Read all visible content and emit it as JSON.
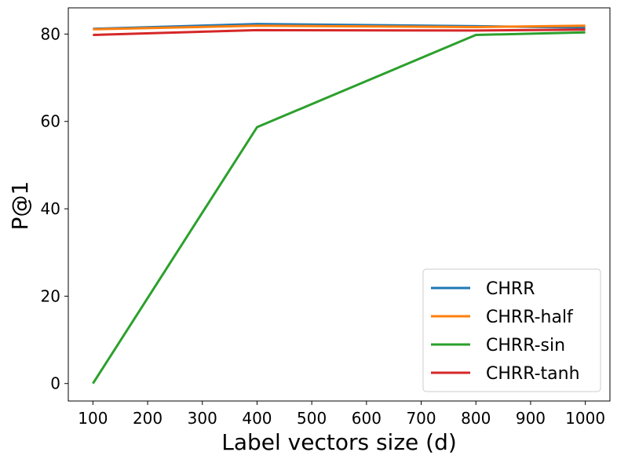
{
  "chart_data": {
    "type": "line",
    "title": "",
    "xlabel": "Label vectors size (d)",
    "ylabel": "P@1",
    "x": [
      100,
      400,
      800,
      1000
    ],
    "xlim": [
      55,
      1045
    ],
    "ylim": [
      -4,
      86
    ],
    "xticks": [
      100,
      200,
      300,
      400,
      500,
      600,
      700,
      800,
      900,
      1000
    ],
    "yticks": [
      0,
      20,
      40,
      60,
      80
    ],
    "grid": false,
    "legend_position": "lower-right",
    "series": [
      {
        "name": "CHRR",
        "color": "#1f77b4",
        "values": [
          81.2,
          82.3,
          81.8,
          81.5
        ]
      },
      {
        "name": "CHRR-half",
        "color": "#ff7f0e",
        "values": [
          81.1,
          81.9,
          81.6,
          81.9
        ]
      },
      {
        "name": "CHRR-sin",
        "color": "#2ca02c",
        "values": [
          0,
          58.7,
          79.8,
          80.4
        ]
      },
      {
        "name": "CHRR-tanh",
        "color": "#d62728",
        "values": [
          79.8,
          80.9,
          80.8,
          81.0
        ]
      }
    ]
  }
}
